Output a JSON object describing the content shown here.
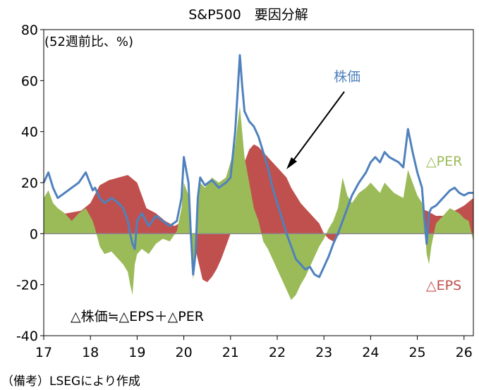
{
  "chart_data": {
    "type": "area",
    "title": "S&P500　要因分解",
    "unit_label": "(52週前比、%)",
    "ylim": [
      -40,
      80
    ],
    "yticks": [
      -40,
      -20,
      0,
      20,
      40,
      60,
      80
    ],
    "xlim": [
      17,
      26.2
    ],
    "xticks": [
      "17",
      "18",
      "19",
      "20",
      "21",
      "22",
      "23",
      "24",
      "25",
      "26"
    ],
    "series": [
      {
        "name": "△PER",
        "type": "area",
        "color": "#9bbb59",
        "x": [
          17.0,
          17.1,
          17.2,
          17.3,
          17.45,
          17.6,
          17.75,
          17.9,
          18.05,
          18.1,
          18.2,
          18.3,
          18.45,
          18.6,
          18.7,
          18.8,
          18.85,
          18.9,
          18.95,
          19.0,
          19.1,
          19.25,
          19.4,
          19.55,
          19.7,
          19.85,
          19.95,
          20.0,
          20.1,
          20.15,
          20.2,
          20.25,
          20.3,
          20.35,
          20.45,
          20.6,
          20.75,
          20.9,
          21.0,
          21.1,
          21.2,
          21.25,
          21.3,
          21.4,
          21.5,
          21.6,
          21.7,
          21.8,
          21.9,
          22.0,
          22.1,
          22.2,
          22.3,
          22.4,
          22.5,
          22.6,
          22.7,
          22.8,
          22.9,
          23.0,
          23.1,
          23.2,
          23.3,
          23.4,
          23.5,
          23.6,
          23.75,
          23.9,
          24.0,
          24.1,
          24.2,
          24.3,
          24.4,
          24.5,
          24.6,
          24.7,
          24.8,
          24.9,
          25.0,
          25.1,
          25.15,
          25.2,
          25.25,
          25.3,
          25.4,
          25.5,
          25.6,
          25.7,
          25.8,
          25.9,
          26.0,
          26.1,
          26.2
        ],
        "values": [
          14,
          17,
          12,
          10,
          8,
          5,
          8,
          10,
          5,
          2,
          -5,
          -8,
          -7,
          -10,
          -12,
          -15,
          -20,
          -24,
          -12,
          -8,
          -6,
          -8,
          -4,
          -2,
          -3,
          1,
          10,
          20,
          15,
          -5,
          -18,
          -10,
          10,
          20,
          18,
          22,
          20,
          22,
          28,
          35,
          50,
          40,
          30,
          20,
          10,
          5,
          -3,
          -6,
          -10,
          -14,
          -18,
          -22,
          -26,
          -24,
          -20,
          -17,
          -13,
          -9,
          -5,
          -2,
          2,
          5,
          10,
          22,
          15,
          12,
          16,
          18,
          20,
          18,
          16,
          20,
          18,
          16,
          15,
          14,
          25,
          20,
          15,
          12,
          5,
          -8,
          -12,
          -5,
          4,
          6,
          8,
          10,
          9,
          8,
          6,
          5,
          -3
        ]
      },
      {
        "name": "△EPS",
        "type": "area",
        "color": "#c0504d",
        "x": [
          17.0,
          17.2,
          17.5,
          17.8,
          18.0,
          18.2,
          18.4,
          18.6,
          18.8,
          19.0,
          19.2,
          19.4,
          19.6,
          19.8,
          20.0,
          20.1,
          20.2,
          20.3,
          20.4,
          20.5,
          20.6,
          20.7,
          20.8,
          20.9,
          21.0,
          21.1,
          21.2,
          21.3,
          21.4,
          21.5,
          21.6,
          21.7,
          21.8,
          21.9,
          22.0,
          22.1,
          22.2,
          22.3,
          22.4,
          22.5,
          22.6,
          22.7,
          22.8,
          22.9,
          23.0,
          23.1,
          23.2,
          23.3,
          23.4,
          23.5,
          23.7,
          23.9,
          24.0,
          24.2,
          24.4,
          24.6,
          24.8,
          25.0,
          25.2,
          25.3,
          25.4,
          25.6,
          25.8,
          26.0,
          26.2
        ],
        "values": [
          5,
          7,
          8,
          9,
          12,
          19,
          21,
          22,
          23,
          20,
          10,
          8,
          5,
          3,
          5,
          3,
          -2,
          -10,
          -18,
          -19,
          -17,
          -14,
          -10,
          -5,
          0,
          8,
          20,
          28,
          33,
          35,
          34,
          32,
          30,
          28,
          26,
          24,
          22,
          18,
          15,
          12,
          10,
          8,
          6,
          4,
          0,
          -2,
          -3,
          -1,
          1,
          3,
          6,
          8,
          9,
          10,
          11,
          11,
          11,
          10,
          9,
          8,
          7,
          7,
          9,
          11,
          14
        ]
      },
      {
        "name": "株価",
        "type": "line",
        "color": "#4f81bd",
        "x": [
          17.0,
          17.1,
          17.2,
          17.3,
          17.45,
          17.6,
          17.75,
          17.9,
          18.05,
          18.1,
          18.2,
          18.3,
          18.45,
          18.6,
          18.7,
          18.8,
          18.85,
          18.9,
          18.95,
          19.0,
          19.1,
          19.25,
          19.4,
          19.55,
          19.7,
          19.85,
          19.95,
          20.0,
          20.1,
          20.15,
          20.2,
          20.25,
          20.3,
          20.35,
          20.45,
          20.6,
          20.75,
          20.9,
          21.0,
          21.1,
          21.2,
          21.25,
          21.3,
          21.4,
          21.5,
          21.6,
          21.7,
          21.8,
          21.9,
          22.0,
          22.1,
          22.2,
          22.3,
          22.4,
          22.5,
          22.6,
          22.7,
          22.8,
          22.9,
          23.0,
          23.1,
          23.2,
          23.3,
          23.4,
          23.5,
          23.6,
          23.75,
          23.9,
          24.0,
          24.1,
          24.2,
          24.3,
          24.4,
          24.5,
          24.6,
          24.7,
          24.8,
          24.9,
          25.0,
          25.1,
          25.15,
          25.2,
          25.25,
          25.3,
          25.4,
          25.5,
          25.6,
          25.7,
          25.8,
          25.9,
          26.0,
          26.1,
          26.2
        ],
        "values": [
          20,
          24,
          18,
          14,
          16,
          18,
          20,
          24,
          17,
          18,
          14,
          12,
          14,
          12,
          10,
          5,
          0,
          -4,
          -6,
          5,
          8,
          3,
          7,
          5,
          3,
          5,
          14,
          30,
          20,
          0,
          -16,
          -8,
          14,
          22,
          19,
          21,
          18,
          20,
          22,
          40,
          70,
          58,
          48,
          44,
          42,
          38,
          32,
          26,
          18,
          12,
          6,
          0,
          -5,
          -10,
          -12,
          -14,
          -13,
          -16,
          -17,
          -13,
          -9,
          -4,
          0,
          5,
          10,
          15,
          20,
          24,
          28,
          30,
          28,
          32,
          30,
          29,
          28,
          26,
          41,
          32,
          24,
          18,
          6,
          -4,
          8,
          10,
          11,
          13,
          15,
          17,
          18,
          16,
          15,
          16,
          16
        ]
      }
    ],
    "annotations": {
      "stock_label": "株価",
      "per_label": "△PER",
      "eps_label": "△EPS",
      "equation": "△株価≒△EPS＋△PER"
    },
    "source": "（備考）LSEGにより作成"
  }
}
